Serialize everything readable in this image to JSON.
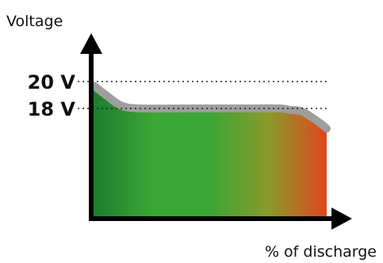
{
  "chart_data": {
    "type": "area",
    "title": "",
    "ylabel": "Voltage",
    "xlabel": "% of discharge",
    "xlim": [
      0,
      100
    ],
    "ylim": [
      10,
      22.4
    ],
    "y_ticks": [
      {
        "value": 20,
        "label": "20 V"
      },
      {
        "value": 18,
        "label": "18 V"
      }
    ],
    "reference_lines": [
      20,
      18
    ],
    "series": [
      {
        "x": [
          0,
          6,
          12,
          20,
          40,
          60,
          70,
          80,
          84,
          89,
          94,
          98,
          100
        ],
        "y": [
          19.7,
          18.9,
          18.2,
          18.0,
          18.0,
          18.0,
          18.0,
          18.0,
          17.9,
          17.8,
          17.3,
          16.8,
          16.5
        ]
      }
    ],
    "fill_gradient": [
      "#1e7c2e",
      "#3aa635",
      "#3aa635",
      "#8a9a2a",
      "#e0461e"
    ],
    "curve_color": "#9e9e9e",
    "grid": false
  }
}
